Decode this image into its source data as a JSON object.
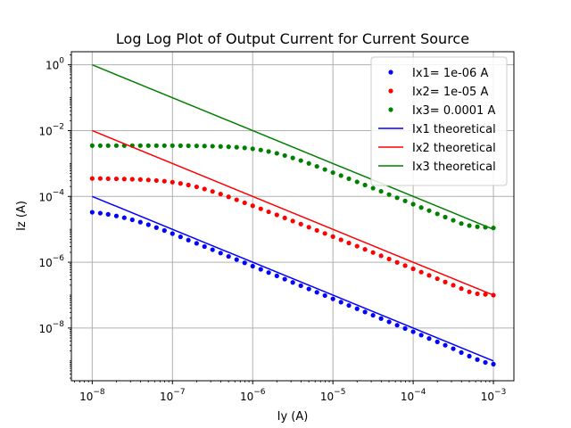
{
  "chart_data": {
    "type": "line",
    "title": "Log Log Plot of Output Current for Current Source",
    "xlabel": "Iy (A)",
    "ylabel": "Iz (A)",
    "xscale": "log",
    "yscale": "log",
    "xlim": [
      5.5e-09,
      0.0018
    ],
    "ylim": [
      2.5e-10,
      2.5
    ],
    "grid": true,
    "legend_position": "top-right",
    "x_ticks": [
      {
        "base": "10",
        "exp": "−8"
      },
      {
        "base": "10",
        "exp": "−7"
      },
      {
        "base": "10",
        "exp": "−6"
      },
      {
        "base": "10",
        "exp": "−5"
      },
      {
        "base": "10",
        "exp": "−4"
      },
      {
        "base": "10",
        "exp": "−3"
      }
    ],
    "x_tick_values": [
      1e-08,
      1e-07,
      1e-06,
      1e-05,
      0.0001,
      0.001
    ],
    "y_ticks": [
      {
        "base": "10",
        "exp": "−8"
      },
      {
        "base": "10",
        "exp": "−6"
      },
      {
        "base": "10",
        "exp": "−4"
      },
      {
        "base": "10",
        "exp": "−2"
      },
      {
        "base": "10",
        "exp": "0"
      }
    ],
    "y_tick_values": [
      1e-08,
      1e-06,
      0.0001,
      0.01,
      1
    ],
    "series": [
      {
        "name": "Ix1= 1e-06 A",
        "kind": "scatter",
        "color": "#0000ff",
        "x": [
          1e-08,
          1.26e-08,
          1.58e-08,
          2e-08,
          2.51e-08,
          3.16e-08,
          3.98e-08,
          5.01e-08,
          6.31e-08,
          7.94e-08,
          1e-07,
          1.26e-07,
          1.58e-07,
          2e-07,
          2.51e-07,
          3.16e-07,
          3.98e-07,
          5.01e-07,
          6.31e-07,
          7.94e-07,
          1e-06,
          1.26e-06,
          1.58e-06,
          2e-06,
          2.51e-06,
          3.16e-06,
          3.98e-06,
          5.01e-06,
          6.31e-06,
          7.94e-06,
          1e-05,
          1.26e-05,
          1.58e-05,
          2e-05,
          2.51e-05,
          3.16e-05,
          3.98e-05,
          5.01e-05,
          6.31e-05,
          7.94e-05,
          0.0001,
          0.000126,
          0.000158,
          0.0002,
          0.000251,
          0.000316,
          0.000398,
          0.000501,
          0.000631,
          0.000794,
          0.001
        ],
        "y": [
          3.3e-05,
          3.1e-05,
          2.85e-05,
          2.55e-05,
          2.25e-05,
          1.95e-05,
          1.65e-05,
          1.38e-05,
          1.13e-05,
          9.2e-06,
          7.4e-06,
          5.9e-06,
          4.7e-06,
          3.75e-06,
          3e-06,
          2.4e-06,
          1.9e-06,
          1.5e-06,
          1.2e-06,
          9.6e-07,
          7.6e-07,
          6.1e-07,
          4.85e-07,
          3.85e-07,
          3.06e-07,
          2.43e-07,
          1.93e-07,
          1.54e-07,
          1.22e-07,
          9.7e-08,
          7.7e-08,
          6.1e-08,
          4.86e-08,
          3.86e-08,
          3.07e-08,
          2.44e-08,
          1.94e-08,
          1.54e-08,
          1.22e-08,
          9.7e-09,
          7.7e-09,
          6.1e-09,
          4.8e-09,
          3.8e-09,
          3e-09,
          2.35e-09,
          1.8e-09,
          1.4e-09,
          1.1e-09,
          9e-10,
          8e-10
        ]
      },
      {
        "name": "Ix2= 1e-05 A",
        "kind": "scatter",
        "color": "#ff0000",
        "x": [
          1e-08,
          1.26e-08,
          1.58e-08,
          2e-08,
          2.51e-08,
          3.16e-08,
          3.98e-08,
          5.01e-08,
          6.31e-08,
          7.94e-08,
          1e-07,
          1.26e-07,
          1.58e-07,
          2e-07,
          2.51e-07,
          3.16e-07,
          3.98e-07,
          5.01e-07,
          6.31e-07,
          7.94e-07,
          1e-06,
          1.26e-06,
          1.58e-06,
          2e-06,
          2.51e-06,
          3.16e-06,
          3.98e-06,
          5.01e-06,
          6.31e-06,
          7.94e-06,
          1e-05,
          1.26e-05,
          1.58e-05,
          2e-05,
          2.51e-05,
          3.16e-05,
          3.98e-05,
          5.01e-05,
          6.31e-05,
          7.94e-05,
          0.0001,
          0.000126,
          0.000158,
          0.0002,
          0.000251,
          0.000316,
          0.000398,
          0.000501,
          0.000631,
          0.000794,
          0.001
        ],
        "y": [
          0.00035,
          0.00035,
          0.000345,
          0.000342,
          0.000338,
          0.000333,
          0.000326,
          0.000317,
          0.000305,
          0.00029,
          0.000271,
          0.000248,
          0.000222,
          0.000195,
          0.000168,
          0.000142,
          0.000118,
          9.7e-05,
          7.9e-05,
          6.4e-05,
          5.2e-05,
          4.2e-05,
          3.4e-05,
          2.75e-05,
          2.22e-05,
          1.79e-05,
          1.44e-05,
          1.16e-05,
          9.3e-06,
          7.5e-06,
          6e-06,
          4.8e-06,
          3.85e-06,
          3.08e-06,
          2.46e-06,
          1.97e-06,
          1.57e-06,
          1.25e-06,
          9.9e-07,
          7.9e-07,
          6.3e-07,
          5e-07,
          3.98e-07,
          3.16e-07,
          2.51e-07,
          2e-07,
          1.58e-07,
          1.26e-07,
          1.1e-07,
          1.05e-07,
          1e-07
        ]
      },
      {
        "name": "Ix3= 0.0001 A",
        "kind": "scatter",
        "color": "#008000",
        "x": [
          1e-08,
          1.26e-08,
          1.58e-08,
          2e-08,
          2.51e-08,
          3.16e-08,
          3.98e-08,
          5.01e-08,
          6.31e-08,
          7.94e-08,
          1e-07,
          1.26e-07,
          1.58e-07,
          2e-07,
          2.51e-07,
          3.16e-07,
          3.98e-07,
          5.01e-07,
          6.31e-07,
          7.94e-07,
          1e-06,
          1.26e-06,
          1.58e-06,
          2e-06,
          2.51e-06,
          3.16e-06,
          3.98e-06,
          5.01e-06,
          6.31e-06,
          7.94e-06,
          1e-05,
          1.26e-05,
          1.58e-05,
          2e-05,
          2.51e-05,
          3.16e-05,
          3.98e-05,
          5.01e-05,
          6.31e-05,
          7.94e-05,
          0.0001,
          0.000126,
          0.000158,
          0.0002,
          0.000251,
          0.000316,
          0.000398,
          0.000501,
          0.000631,
          0.000794,
          0.001
        ],
        "y": [
          0.0035,
          0.0035,
          0.0035,
          0.0035,
          0.0035,
          0.0035,
          0.0035,
          0.0035,
          0.0035,
          0.0035,
          0.0035,
          0.00348,
          0.00346,
          0.00343,
          0.0034,
          0.00336,
          0.0033,
          0.00322,
          0.00312,
          0.00298,
          0.0028,
          0.00258,
          0.00232,
          0.00204,
          0.00175,
          0.00148,
          0.00123,
          0.00101,
          0.00082,
          0.00066,
          0.00053,
          0.00043,
          0.000345,
          0.000277,
          0.000222,
          0.000178,
          0.000143,
          0.000114,
          9.1e-05,
          7.3e-05,
          5.8e-05,
          4.6e-05,
          3.7e-05,
          2.95e-05,
          2.35e-05,
          1.88e-05,
          1.5e-05,
          1.3e-05,
          1.2e-05,
          1.15e-05,
          1.1e-05
        ]
      },
      {
        "name": "Ix1 theoretical",
        "kind": "line",
        "color": "#0000ff",
        "x": [
          1e-08,
          0.001
        ],
        "y": [
          0.0001,
          1e-09
        ]
      },
      {
        "name": "Ix2 theoretical",
        "kind": "line",
        "color": "#ff0000",
        "x": [
          1e-08,
          0.001
        ],
        "y": [
          0.01,
          1e-07
        ]
      },
      {
        "name": "Ix3 theoretical",
        "kind": "line",
        "color": "#008000",
        "x": [
          1e-08,
          0.001
        ],
        "y": [
          1,
          1e-05
        ]
      }
    ]
  }
}
